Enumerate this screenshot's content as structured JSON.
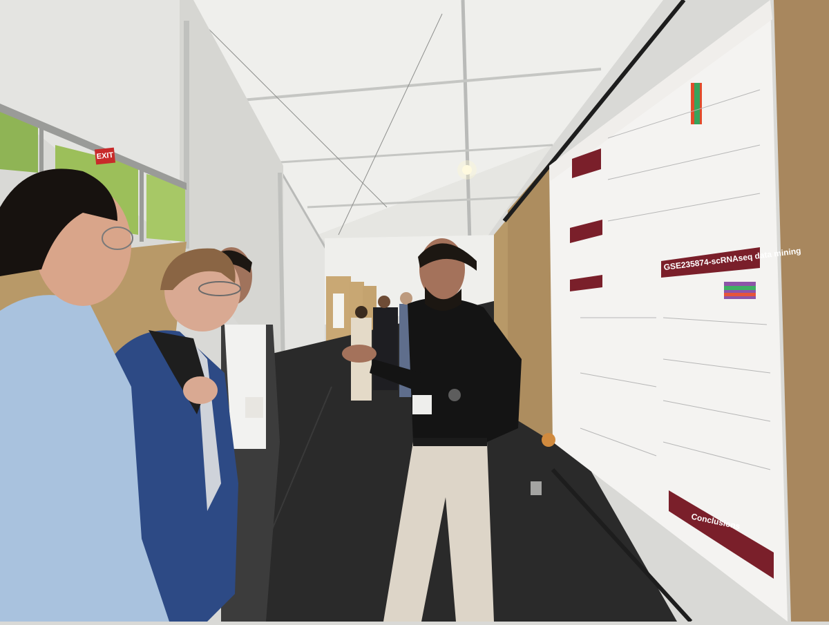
{
  "scene": {
    "exit_sign": "EXIT",
    "poster_section_1": "GSE235874-scRNAseq data mining",
    "poster_section_2": "Conclusions"
  },
  "colors": {
    "tent_white": "#eeeeea",
    "carpet": "#2b2b2b",
    "board_cork": "#a8875e",
    "poster_accent": "#7a1f2a"
  }
}
